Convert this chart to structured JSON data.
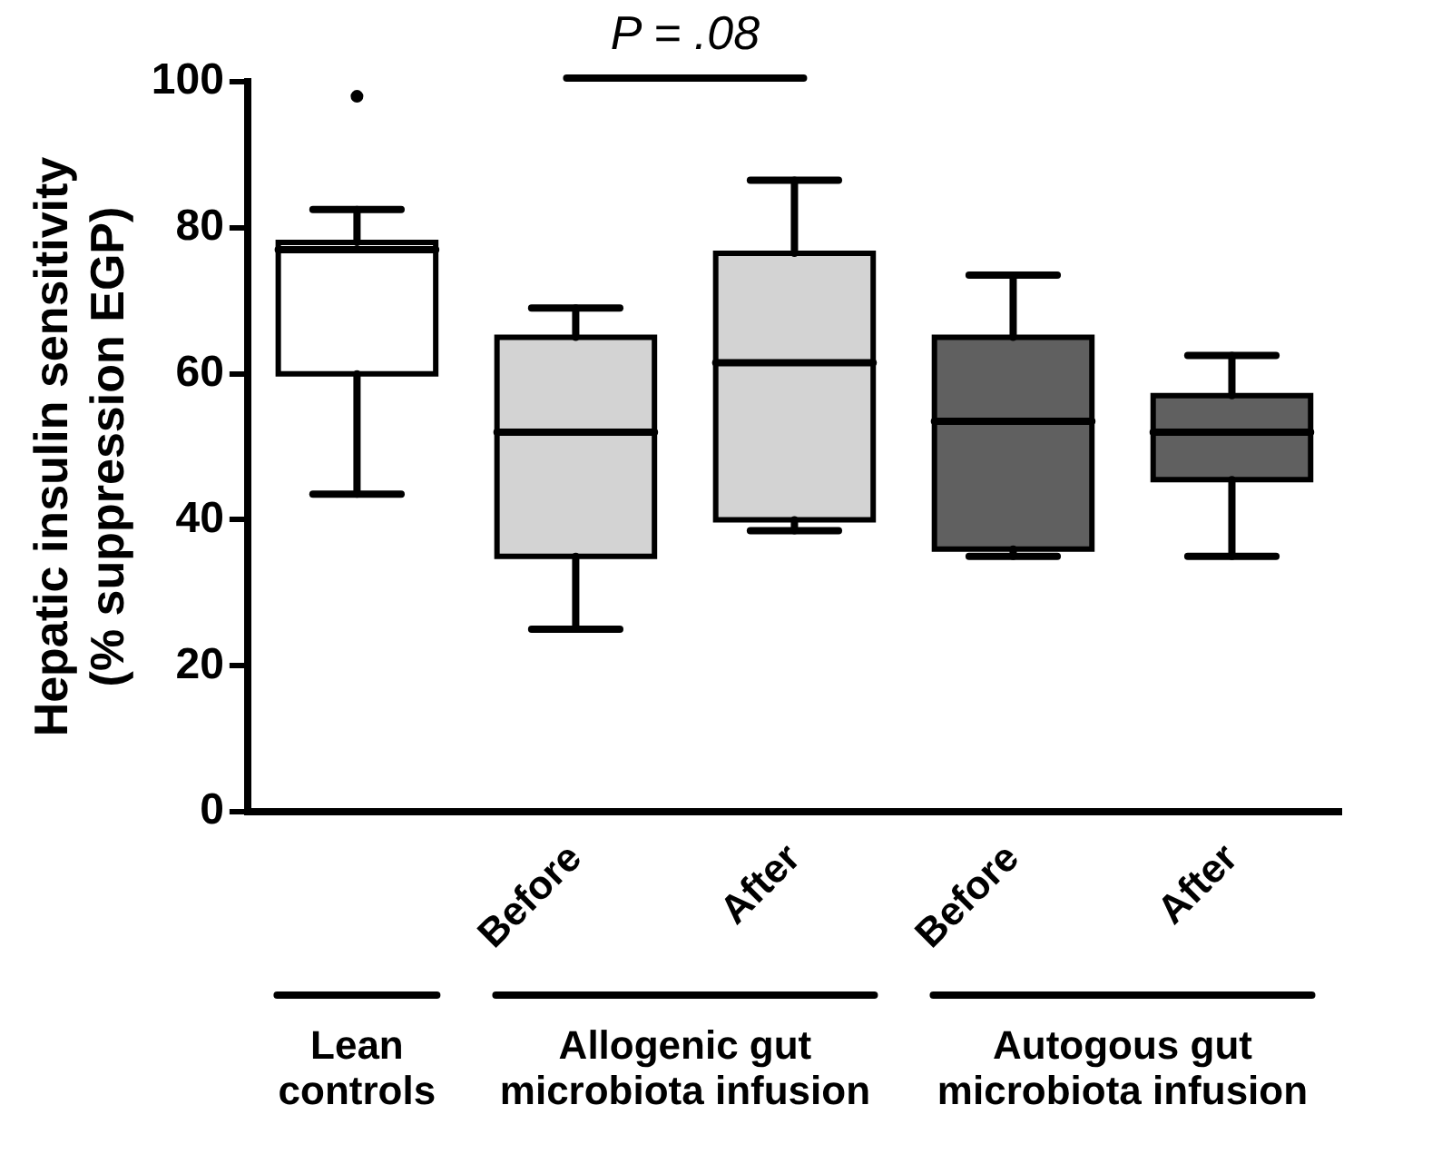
{
  "chart_data": {
    "type": "box",
    "ylabel": "Hepatic insulin sensitivity\n(% suppression EGP)",
    "categories": [
      null,
      "Before",
      "After",
      "Before",
      "After"
    ],
    "colors": [
      "#ffffff",
      "#d3d3d3",
      "#d3d3d3",
      "#606060",
      "#606060"
    ],
    "boxes": [
      {
        "low": 43.5,
        "q1": 60,
        "q3": 78,
        "median": 77,
        "high": 82.5,
        "outliers": [
          98
        ]
      },
      {
        "low": 25,
        "q1": 35,
        "median": 52,
        "q3": 65,
        "high": 69
      },
      {
        "low": 38.5,
        "q1": 40,
        "median": 61.5,
        "q3": 76.5,
        "high": 86.5
      },
      {
        "low": 35,
        "q1": 36,
        "median": 53.5,
        "q3": 65,
        "high": 73.5
      },
      {
        "low": 35,
        "q1": 45.5,
        "median": 52,
        "q3": 57,
        "high": 62.5
      }
    ],
    "ylim": [
      0,
      100
    ],
    "yticks": [
      0,
      20,
      40,
      60,
      80,
      100
    ],
    "grid": false,
    "legend": false,
    "annotations": [
      "P = .08",
      "Lean\ncontrols",
      "Allogenic gut\nmicrobiota infusion",
      "Autogous gut\nmicrobiota infusion"
    ]
  }
}
